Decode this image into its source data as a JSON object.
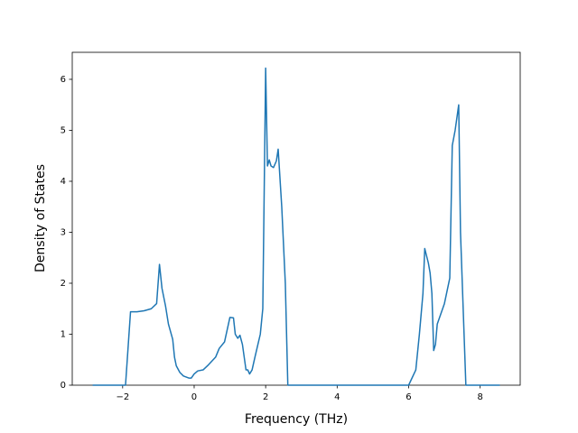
{
  "chart_data": {
    "type": "line",
    "x_label": "Frequency (THz)",
    "y_label": "Density of States",
    "x": [
      -2.84,
      -1.92,
      -1.78,
      -1.6,
      -1.4,
      -1.2,
      -1.05,
      -0.97,
      -0.9,
      -0.8,
      -0.72,
      -0.6,
      -0.55,
      -0.5,
      -0.4,
      -0.3,
      -0.15,
      -0.08,
      0,
      0.1,
      0.25,
      0.4,
      0.6,
      0.7,
      0.85,
      1.0,
      1.1,
      1.15,
      1.22,
      1.28,
      1.35,
      1.45,
      1.5,
      1.55,
      1.62,
      1.7,
      1.85,
      1.92,
      2.0,
      2.05,
      2.1,
      2.15,
      2.22,
      2.3,
      2.35,
      2.45,
      2.55,
      2.62,
      6.0,
      6.2,
      6.3,
      6.4,
      6.45,
      6.55,
      6.6,
      6.65,
      6.7,
      6.75,
      6.8,
      7.0,
      7.15,
      7.22,
      7.3,
      7.4,
      7.45,
      7.6,
      8.55
    ],
    "series": [
      {
        "name": "DOS",
        "color": "#1f77b4",
        "values": [
          0,
          0,
          1.44,
          1.44,
          1.46,
          1.5,
          1.6,
          2.37,
          1.9,
          1.55,
          1.2,
          0.9,
          0.55,
          0.38,
          0.25,
          0.18,
          0.14,
          0.14,
          0.22,
          0.28,
          0.3,
          0.4,
          0.55,
          0.72,
          0.85,
          1.33,
          1.32,
          1.0,
          0.92,
          0.98,
          0.8,
          0.3,
          0.3,
          0.22,
          0.3,
          0.55,
          1.0,
          1.5,
          6.22,
          4.3,
          4.42,
          4.3,
          4.27,
          4.4,
          4.63,
          3.5,
          2.0,
          0,
          0,
          0.3,
          1.0,
          1.8,
          2.68,
          2.4,
          2.2,
          1.8,
          0.68,
          0.8,
          1.2,
          1.6,
          2.1,
          4.7,
          5.0,
          5.5,
          3.0,
          0,
          0
        ]
      }
    ],
    "xlim": [
      -3.41,
      9.12
    ],
    "ylim": [
      0,
      6.53
    ],
    "xticks": [
      {
        "value": -2,
        "label": "−2"
      },
      0,
      2,
      4,
      6,
      8
    ],
    "yticks": [
      0,
      1,
      2,
      3,
      4,
      5,
      6
    ]
  }
}
